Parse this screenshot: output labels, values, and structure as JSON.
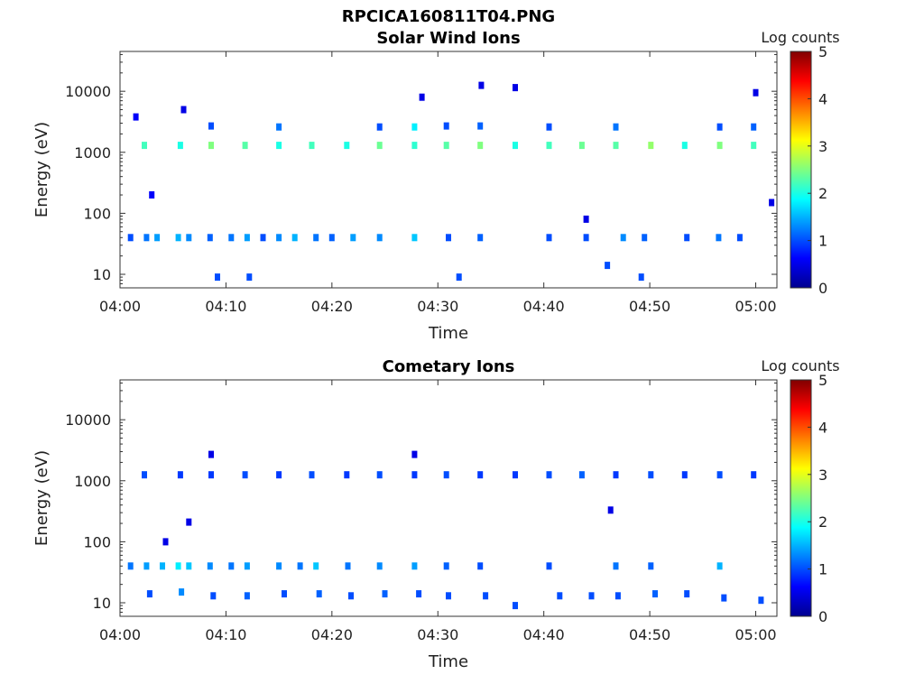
{
  "figure_title": "RPCICA160811T04.PNG",
  "chart_data": [
    {
      "type": "heatmap",
      "title": "Solar Wind Ions",
      "xlabel": "Time",
      "ylabel": "Energy (eV)",
      "x_ticks": [
        "04:00",
        "04:10",
        "04:20",
        "04:30",
        "04:40",
        "04:50",
        "05:00"
      ],
      "x_range_minutes": [
        0,
        62
      ],
      "y_scale": "log",
      "y_ticks": [
        "10",
        "100",
        "1000",
        "10000"
      ],
      "y_range": [
        6,
        45000
      ],
      "colorbar": {
        "label": "Log counts",
        "ticks": [
          "0",
          "1",
          "2",
          "3",
          "4",
          "5"
        ],
        "range": [
          0,
          5
        ],
        "colormap": "jet"
      },
      "points": [
        [
          2.3,
          1300,
          2.2
        ],
        [
          5.7,
          1300,
          2.0
        ],
        [
          8.6,
          1300,
          2.5
        ],
        [
          11.8,
          1300,
          2.3
        ],
        [
          15.0,
          1300,
          2.0
        ],
        [
          18.1,
          1300,
          2.2
        ],
        [
          21.4,
          1300,
          2.0
        ],
        [
          24.5,
          1300,
          2.4
        ],
        [
          27.8,
          1300,
          2.1
        ],
        [
          30.8,
          1300,
          2.3
        ],
        [
          34.0,
          1300,
          2.5
        ],
        [
          37.3,
          1300,
          2.0
        ],
        [
          40.5,
          1300,
          2.2
        ],
        [
          43.6,
          1300,
          2.4
        ],
        [
          46.8,
          1300,
          2.3
        ],
        [
          50.1,
          1300,
          2.6
        ],
        [
          53.3,
          1300,
          2.0
        ],
        [
          56.6,
          1300,
          2.5
        ],
        [
          59.8,
          1300,
          2.2
        ],
        [
          8.6,
          2700,
          1.0
        ],
        [
          15.0,
          2600,
          1.2
        ],
        [
          24.5,
          2600,
          1.0
        ],
        [
          27.8,
          2600,
          1.8
        ],
        [
          30.8,
          2700,
          1.0
        ],
        [
          34.0,
          2700,
          1.1
        ],
        [
          40.5,
          2600,
          1.0
        ],
        [
          46.8,
          2600,
          1.2
        ],
        [
          56.6,
          2600,
          1.0
        ],
        [
          59.8,
          2600,
          1.1
        ],
        [
          1.0,
          40,
          1.0
        ],
        [
          2.5,
          40,
          1.2
        ],
        [
          3.5,
          40,
          1.4
        ],
        [
          5.5,
          40,
          1.5
        ],
        [
          6.5,
          40,
          1.3
        ],
        [
          8.5,
          40,
          1.1
        ],
        [
          10.5,
          40,
          1.2
        ],
        [
          12.0,
          40,
          1.4
        ],
        [
          13.5,
          40,
          1.0
        ],
        [
          15.0,
          40,
          1.3
        ],
        [
          16.5,
          40,
          1.5
        ],
        [
          18.5,
          40,
          1.2
        ],
        [
          20.0,
          40,
          1.1
        ],
        [
          22.0,
          40,
          1.4
        ],
        [
          24.5,
          40,
          1.3
        ],
        [
          27.8,
          40,
          1.6
        ],
        [
          31.0,
          40,
          1.0
        ],
        [
          34.0,
          40,
          1.1
        ],
        [
          40.5,
          40,
          1.0
        ],
        [
          44.0,
          40,
          1.0
        ],
        [
          47.5,
          40,
          1.3
        ],
        [
          49.5,
          40,
          1.1
        ],
        [
          53.5,
          40,
          1.0
        ],
        [
          56.5,
          40,
          1.2
        ],
        [
          58.5,
          40,
          1.0
        ],
        [
          9.2,
          9,
          1.0
        ],
        [
          12.2,
          9,
          1.0
        ],
        [
          32.0,
          9,
          1.0
        ],
        [
          49.2,
          9,
          1.0
        ],
        [
          46.0,
          14,
          1.0
        ],
        [
          1.5,
          3800,
          0.6
        ],
        [
          3.0,
          200,
          0.6
        ],
        [
          6.0,
          5000,
          0.5
        ],
        [
          28.5,
          8000,
          0.5
        ],
        [
          34.1,
          12500,
          0.5
        ],
        [
          37.3,
          11500,
          0.5
        ],
        [
          60.0,
          9500,
          0.5
        ],
        [
          44.0,
          80,
          0.5
        ],
        [
          61.5,
          150,
          0.5
        ]
      ]
    },
    {
      "type": "heatmap",
      "title": "Cometary Ions",
      "xlabel": "Time",
      "ylabel": "Energy (eV)",
      "x_ticks": [
        "04:00",
        "04:10",
        "04:20",
        "04:30",
        "04:40",
        "04:50",
        "05:00"
      ],
      "x_range_minutes": [
        0,
        62
      ],
      "y_scale": "log",
      "y_ticks": [
        "10",
        "100",
        "1000",
        "10000"
      ],
      "y_range": [
        6,
        45000
      ],
      "colorbar": {
        "label": "Log counts",
        "ticks": [
          "0",
          "1",
          "2",
          "3",
          "4",
          "5"
        ],
        "range": [
          0,
          5
        ],
        "colormap": "jet"
      },
      "points": [
        [
          2.3,
          1250,
          1.0
        ],
        [
          5.7,
          1250,
          0.9
        ],
        [
          8.6,
          1250,
          0.9
        ],
        [
          11.8,
          1250,
          1.0
        ],
        [
          15.0,
          1250,
          0.9
        ],
        [
          18.1,
          1250,
          1.0
        ],
        [
          21.4,
          1250,
          0.9
        ],
        [
          24.5,
          1250,
          1.0
        ],
        [
          27.8,
          1250,
          0.9
        ],
        [
          30.8,
          1250,
          1.0
        ],
        [
          34.0,
          1250,
          0.9
        ],
        [
          37.3,
          1250,
          0.9
        ],
        [
          40.5,
          1250,
          1.0
        ],
        [
          43.6,
          1250,
          1.1
        ],
        [
          46.8,
          1250,
          0.9
        ],
        [
          50.1,
          1250,
          1.0
        ],
        [
          53.3,
          1250,
          0.9
        ],
        [
          56.6,
          1250,
          1.0
        ],
        [
          59.8,
          1250,
          0.9
        ],
        [
          1.0,
          40,
          1.2
        ],
        [
          2.5,
          40,
          1.4
        ],
        [
          4.0,
          40,
          1.5
        ],
        [
          5.5,
          40,
          1.8
        ],
        [
          6.5,
          40,
          1.6
        ],
        [
          8.5,
          40,
          1.3
        ],
        [
          10.5,
          40,
          1.2
        ],
        [
          12.0,
          40,
          1.4
        ],
        [
          15.0,
          40,
          1.3
        ],
        [
          17.0,
          40,
          1.2
        ],
        [
          18.5,
          40,
          1.6
        ],
        [
          21.5,
          40,
          1.2
        ],
        [
          24.5,
          40,
          1.3
        ],
        [
          27.8,
          40,
          1.4
        ],
        [
          30.8,
          40,
          1.1
        ],
        [
          34.0,
          40,
          1.0
        ],
        [
          40.5,
          40,
          1.0
        ],
        [
          46.8,
          40,
          1.2
        ],
        [
          50.1,
          40,
          1.1
        ],
        [
          56.6,
          40,
          1.5
        ],
        [
          2.8,
          14,
          1.0
        ],
        [
          5.8,
          15,
          1.3
        ],
        [
          8.8,
          13,
          1.0
        ],
        [
          12.0,
          13,
          1.1
        ],
        [
          15.5,
          14,
          1.0
        ],
        [
          18.8,
          14,
          1.1
        ],
        [
          21.8,
          13,
          1.0
        ],
        [
          25.0,
          14,
          1.1
        ],
        [
          28.2,
          14,
          1.0
        ],
        [
          31.0,
          13,
          1.0
        ],
        [
          34.5,
          13,
          1.0
        ],
        [
          37.3,
          9,
          1.0
        ],
        [
          41.5,
          13,
          1.0
        ],
        [
          44.5,
          13,
          1.0
        ],
        [
          47.0,
          13,
          1.0
        ],
        [
          50.5,
          14,
          1.1
        ],
        [
          53.5,
          14,
          1.0
        ],
        [
          57.0,
          12,
          1.0
        ],
        [
          60.5,
          11,
          1.0
        ],
        [
          8.6,
          2700,
          0.5
        ],
        [
          27.8,
          2700,
          0.5
        ],
        [
          6.5,
          210,
          0.5
        ],
        [
          4.3,
          100,
          0.5
        ],
        [
          46.3,
          330,
          0.5
        ]
      ]
    }
  ]
}
